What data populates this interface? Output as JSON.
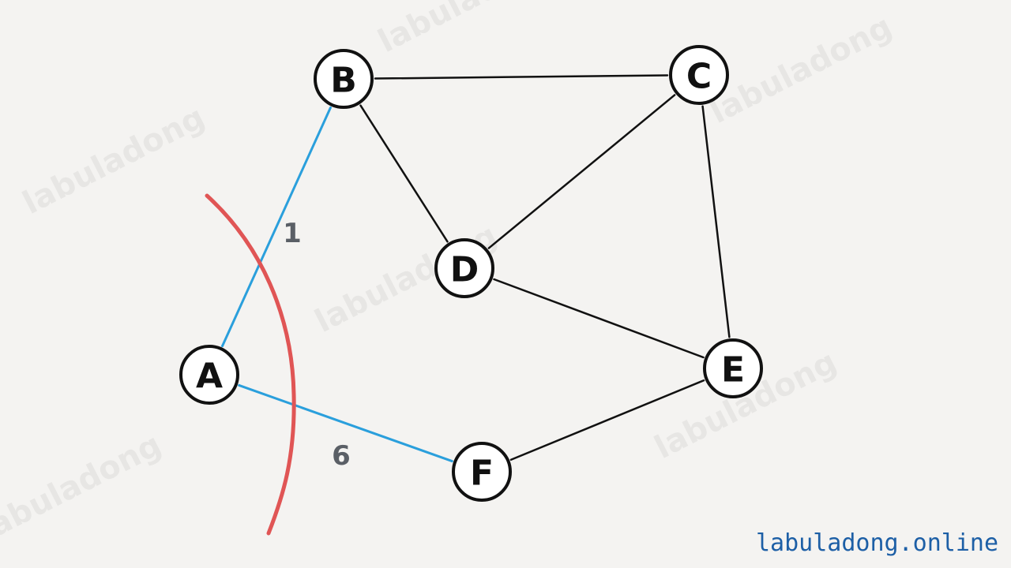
{
  "watermark_text": "labuladong",
  "site_label": "labuladong.online",
  "colors": {
    "background": "#f4f3f1",
    "edge": "#111111",
    "highlight_edge": "#2a9fdc",
    "cut_curve": "#e05555",
    "weight_text": "#5a5f66",
    "site_label": "#1d5fa6"
  },
  "graph": {
    "nodes": [
      {
        "id": "B",
        "label": "B"
      },
      {
        "id": "C",
        "label": "C"
      },
      {
        "id": "D",
        "label": "D"
      },
      {
        "id": "A",
        "label": "A"
      },
      {
        "id": "E",
        "label": "E"
      },
      {
        "id": "F",
        "label": "F"
      }
    ],
    "edges": [
      {
        "from": "B",
        "to": "C",
        "weight": "",
        "highlight": false
      },
      {
        "from": "B",
        "to": "D",
        "weight": "",
        "highlight": false
      },
      {
        "from": "C",
        "to": "D",
        "weight": "",
        "highlight": false
      },
      {
        "from": "C",
        "to": "E",
        "weight": "",
        "highlight": false
      },
      {
        "from": "D",
        "to": "E",
        "weight": "",
        "highlight": false
      },
      {
        "from": "E",
        "to": "F",
        "weight": "",
        "highlight": false
      },
      {
        "from": "A",
        "to": "B",
        "weight": "1",
        "highlight": true
      },
      {
        "from": "A",
        "to": "F",
        "weight": "6",
        "highlight": true
      }
    ],
    "cut": {
      "color": "red",
      "crosses": [
        "A-B",
        "A-F"
      ]
    }
  }
}
